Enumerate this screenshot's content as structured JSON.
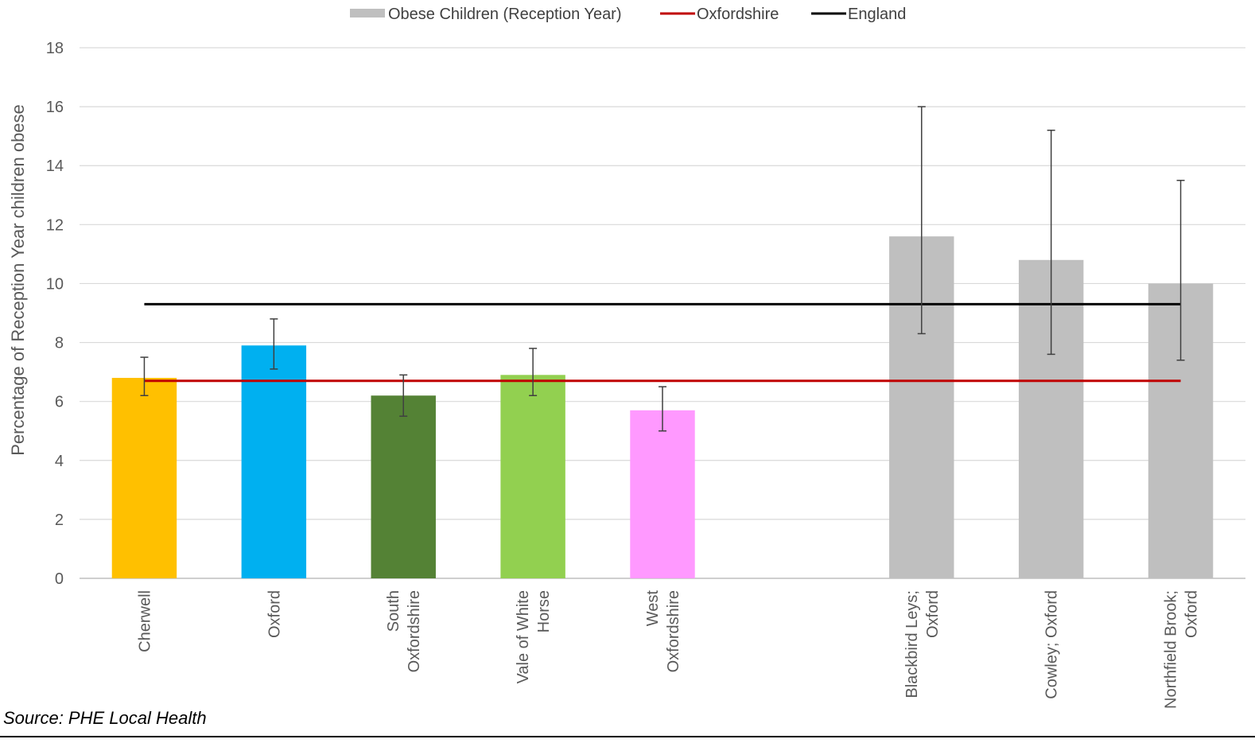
{
  "chart_data": {
    "type": "bar",
    "ylabel": "Percentage of Reception Year children  obese",
    "ylim": [
      0,
      18
    ],
    "yticks": [
      0,
      2,
      4,
      6,
      8,
      10,
      12,
      14,
      16,
      18
    ],
    "grid": true,
    "legend_position": "top",
    "legend": [
      {
        "label": "Obese Children (Reception Year)",
        "kind": "bar",
        "color": "#bfbfbf"
      },
      {
        "label": "Oxfordshire",
        "kind": "line",
        "color": "#c00000"
      },
      {
        "label": "England",
        "kind": "line",
        "color": "#000000"
      }
    ],
    "categories": [
      {
        "lines": [
          "Cherwell"
        ],
        "value": 6.8,
        "error_low": 6.2,
        "error_high": 7.5,
        "color": "#ffc000"
      },
      {
        "lines": [
          "Oxford"
        ],
        "value": 7.9,
        "error_low": 7.1,
        "error_high": 8.8,
        "color": "#00b0f0"
      },
      {
        "lines": [
          "South",
          "Oxfordshire"
        ],
        "value": 6.2,
        "error_low": 5.5,
        "error_high": 6.9,
        "color": "#548235"
      },
      {
        "lines": [
          "Vale of White",
          "Horse"
        ],
        "value": 6.9,
        "error_low": 6.2,
        "error_high": 7.8,
        "color": "#92d050"
      },
      {
        "lines": [
          "West",
          "Oxfordshire"
        ],
        "value": 5.7,
        "error_low": 5.0,
        "error_high": 6.5,
        "color": "#ff99ff"
      },
      {
        "lines": [
          ""
        ],
        "value": null,
        "error_low": null,
        "error_high": null,
        "color": ""
      },
      {
        "lines": [
          "Blackbird Leys;",
          "Oxford"
        ],
        "value": 11.6,
        "error_low": 8.3,
        "error_high": 16.0,
        "color": "#bfbfbf"
      },
      {
        "lines": [
          "Cowley; Oxford"
        ],
        "value": 10.8,
        "error_low": 7.6,
        "error_high": 15.2,
        "color": "#bfbfbf"
      },
      {
        "lines": [
          "Northfield Brook;",
          "Oxford"
        ],
        "value": 10.0,
        "error_low": 7.4,
        "error_high": 13.5,
        "color": "#bfbfbf"
      }
    ],
    "reference_lines": [
      {
        "name": "Oxfordshire",
        "value": 6.7,
        "color": "#c00000"
      },
      {
        "name": "England",
        "value": 9.3,
        "color": "#000000"
      }
    ]
  },
  "source_note": "Source: PHE Local Health"
}
